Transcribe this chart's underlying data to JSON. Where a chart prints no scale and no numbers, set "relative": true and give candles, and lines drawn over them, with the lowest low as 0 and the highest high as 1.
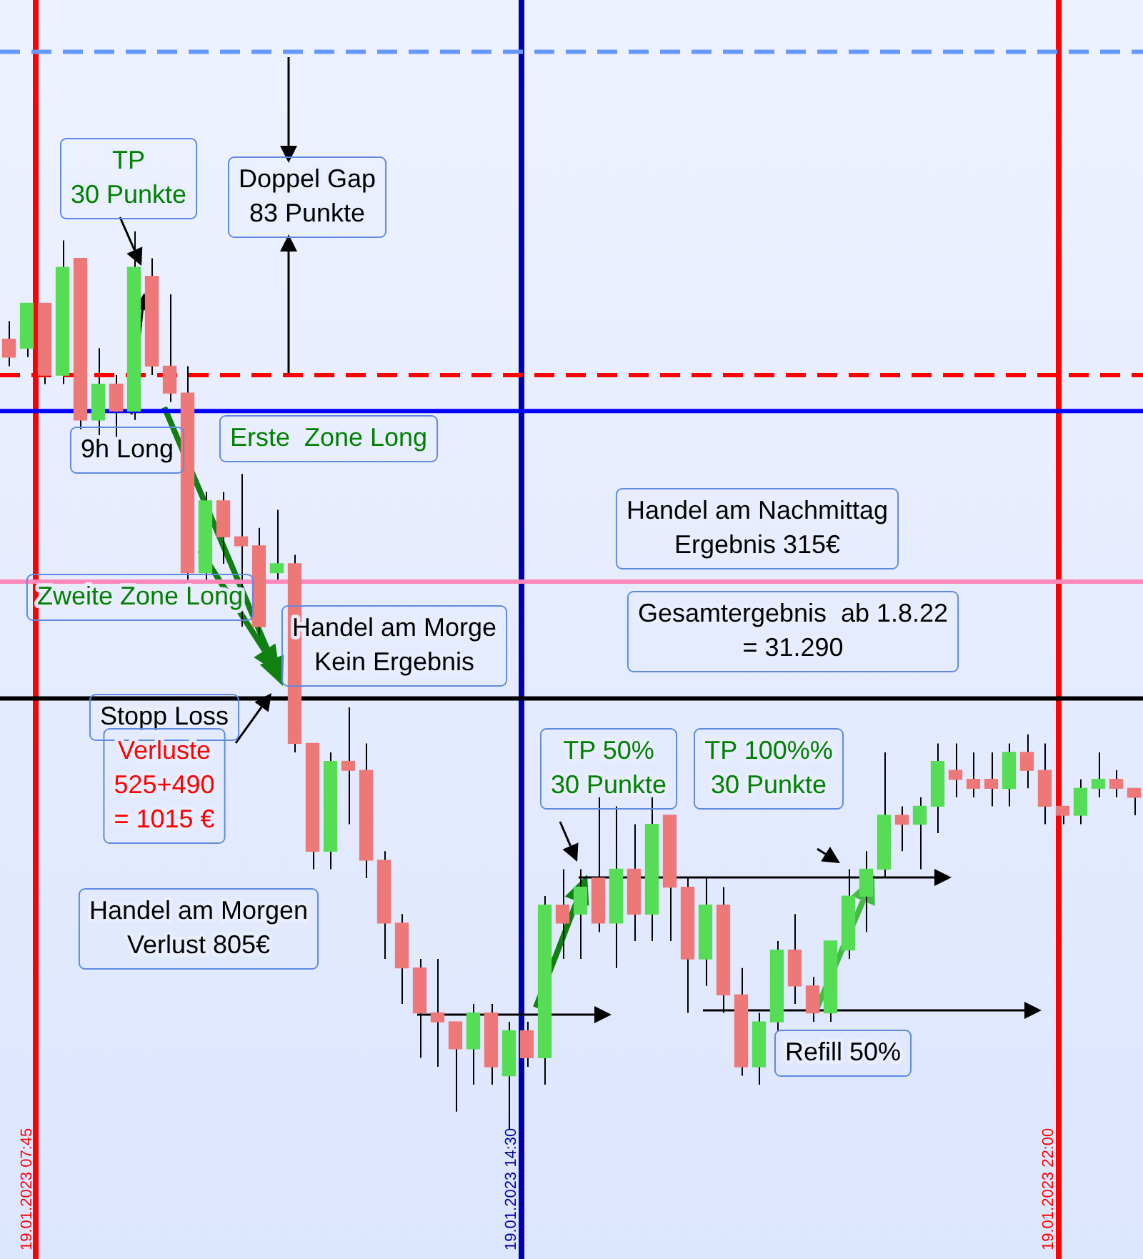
{
  "chart_data": {
    "type": "candlestick",
    "relative": true,
    "tick_labels": false,
    "legend": false,
    "categories": [
      null,
      null,
      null,
      null,
      null,
      null,
      null,
      null,
      null,
      null,
      null,
      null,
      null,
      null,
      null,
      null,
      null,
      null,
      null,
      null,
      null,
      null,
      null,
      null,
      null,
      null,
      null,
      null,
      null,
      null,
      null,
      null,
      null,
      null,
      null,
      null,
      null,
      null,
      null,
      null,
      null,
      null,
      null,
      null,
      null,
      null,
      null,
      null,
      null,
      null,
      null,
      null,
      null,
      null,
      null,
      null,
      null,
      null,
      null,
      null,
      null,
      null,
      null,
      null
    ],
    "ohlc": [
      [
        0.88,
        0.9,
        0.85,
        0.86
      ],
      [
        0.87,
        0.92,
        0.86,
        0.92
      ],
      [
        0.92,
        0.92,
        0.83,
        0.84
      ],
      [
        0.84,
        0.99,
        0.83,
        0.96
      ],
      [
        0.97,
        0.97,
        0.78,
        0.79
      ],
      [
        0.79,
        0.87,
        0.77,
        0.83
      ],
      [
        0.83,
        0.84,
        0.77,
        0.8
      ],
      [
        0.8,
        1.0,
        0.79,
        0.96
      ],
      [
        0.95,
        0.97,
        0.84,
        0.85
      ],
      [
        0.85,
        0.93,
        0.81,
        0.82
      ],
      [
        0.82,
        0.85,
        0.61,
        0.62
      ],
      [
        0.62,
        0.71,
        0.61,
        0.7
      ],
      [
        0.7,
        0.71,
        0.63,
        0.66
      ],
      [
        0.66,
        0.73,
        0.56,
        0.65
      ],
      [
        0.65,
        0.67,
        0.55,
        0.56
      ],
      [
        0.62,
        0.69,
        0.61,
        0.63
      ],
      [
        0.63,
        0.64,
        0.42,
        0.43
      ],
      [
        0.43,
        0.43,
        0.29,
        0.31
      ],
      [
        0.31,
        0.42,
        0.29,
        0.41
      ],
      [
        0.41,
        0.47,
        0.34,
        0.4
      ],
      [
        0.4,
        0.43,
        0.28,
        0.3
      ],
      [
        0.3,
        0.31,
        0.19,
        0.23
      ],
      [
        0.23,
        0.24,
        0.14,
        0.18
      ],
      [
        0.18,
        0.19,
        0.08,
        0.13
      ],
      [
        0.13,
        0.19,
        0.07,
        0.12
      ],
      [
        0.12,
        0.12,
        0.02,
        0.09
      ],
      [
        0.09,
        0.14,
        0.05,
        0.13
      ],
      [
        0.13,
        0.14,
        0.05,
        0.07
      ],
      [
        0.06,
        0.12,
        0.0,
        0.11
      ],
      [
        0.11,
        0.12,
        0.07,
        0.08
      ],
      [
        0.08,
        0.26,
        0.05,
        0.25
      ],
      [
        0.25,
        0.29,
        0.19,
        0.23
      ],
      [
        0.24,
        0.29,
        0.19,
        0.27
      ],
      [
        0.28,
        0.37,
        0.22,
        0.23
      ],
      [
        0.23,
        0.36,
        0.18,
        0.29
      ],
      [
        0.29,
        0.34,
        0.21,
        0.24
      ],
      [
        0.24,
        0.37,
        0.21,
        0.34
      ],
      [
        0.35,
        0.35,
        0.21,
        0.27
      ],
      [
        0.27,
        0.28,
        0.13,
        0.19
      ],
      [
        0.19,
        0.28,
        0.16,
        0.25
      ],
      [
        0.25,
        0.27,
        0.13,
        0.15
      ],
      [
        0.15,
        0.18,
        0.06,
        0.07
      ],
      [
        0.07,
        0.13,
        0.05,
        0.12
      ],
      [
        0.12,
        0.21,
        0.11,
        0.2
      ],
      [
        0.2,
        0.24,
        0.14,
        0.16
      ],
      [
        0.16,
        0.17,
        0.12,
        0.13
      ],
      [
        0.13,
        0.21,
        0.12,
        0.21
      ],
      [
        0.2,
        0.29,
        0.19,
        0.26
      ],
      [
        0.26,
        0.31,
        0.22,
        0.29
      ],
      [
        0.29,
        0.42,
        0.28,
        0.35
      ],
      [
        0.35,
        0.36,
        0.31,
        0.34
      ],
      [
        0.34,
        0.37,
        0.29,
        0.36
      ],
      [
        0.36,
        0.43,
        0.33,
        0.41
      ],
      [
        0.4,
        0.43,
        0.37,
        0.39
      ],
      [
        0.39,
        0.42,
        0.37,
        0.38
      ],
      [
        0.39,
        0.42,
        0.36,
        0.38
      ],
      [
        0.38,
        0.43,
        0.36,
        0.42
      ],
      [
        0.42,
        0.44,
        0.38,
        0.4
      ],
      [
        0.4,
        0.43,
        0.34,
        0.36
      ],
      [
        0.36,
        0.36,
        0.34,
        0.35
      ],
      [
        0.35,
        0.39,
        0.34,
        0.38
      ],
      [
        0.38,
        0.42,
        0.37,
        0.39
      ],
      [
        0.39,
        0.4,
        0.37,
        0.38
      ],
      [
        0.38,
        0.38,
        0.35,
        0.37
      ]
    ],
    "colors": [
      "#ee7777",
      "#55dd55",
      "#ee7777",
      "#55dd55",
      "#ee7777",
      "#55dd55",
      "#ee7777",
      "#55dd55",
      "#ee7777",
      "#ee7777",
      "#ee7777",
      "#55dd55",
      "#ee7777",
      "#ee7777",
      "#ee7777",
      "#55dd55",
      "#ee7777",
      "#ee7777",
      "#55dd55",
      "#ee7777",
      "#ee7777",
      "#ee7777",
      "#ee7777",
      "#ee7777",
      "#ee7777",
      "#ee7777",
      "#55dd55",
      "#ee7777",
      "#55dd55",
      "#ee7777",
      "#55dd55",
      "#ee7777",
      "#55dd55",
      "#ee7777",
      "#55dd55",
      "#ee7777",
      "#55dd55",
      "#ee7777",
      "#ee7777",
      "#55dd55",
      "#ee7777",
      "#ee7777",
      "#55dd55",
      "#55dd55",
      "#ee7777",
      "#ee7777",
      "#55dd55",
      "#55dd55",
      "#55dd55",
      "#55dd55",
      "#ee7777",
      "#55dd55",
      "#55dd55",
      "#ee7777",
      "#ee7777",
      "#ee7777",
      "#55dd55",
      "#ee7777",
      "#ee7777",
      "#ee7777",
      "#55dd55",
      "#55dd55",
      "#ee7777",
      "#ee7777"
    ],
    "ref_lines": [
      {
        "axis": "y",
        "value": 1.2,
        "color": "#6699ff",
        "line_style": "dashed"
      },
      {
        "axis": "y",
        "value": 0.84,
        "color": "#ff0000",
        "line_style": "dashed"
      },
      {
        "axis": "y",
        "value": 0.8,
        "color": "#0000ff"
      },
      {
        "axis": "y",
        "value": 0.61,
        "color": "#ff88bb"
      },
      {
        "axis": "y",
        "value": 0.48,
        "color": "#000000"
      }
    ],
    "annotations": [
      "TP\n30 Punkte",
      "Doppel Gap\n83 Punkte",
      "9h Long",
      "Erste  Zone Long",
      "Zweite Zone Long",
      "Handel am Morge\nKein Ergebnis",
      "Stopp Loss",
      "Verluste\n525+490\n= 1015 €",
      "Handel am Morgen\nVerlust 805€",
      "Handel am Nachmittag\nErgebnis 315€",
      "Gesamtergebnis  ab 1.8.22\n= 31.290",
      "TP 50%\n30 Punkte",
      "TP 100%%\n30 Punkte",
      "Refill 50%",
      "19.01.2023 07:45",
      "19.01.2023 14:30",
      "19.01.2023 22:00"
    ]
  }
}
